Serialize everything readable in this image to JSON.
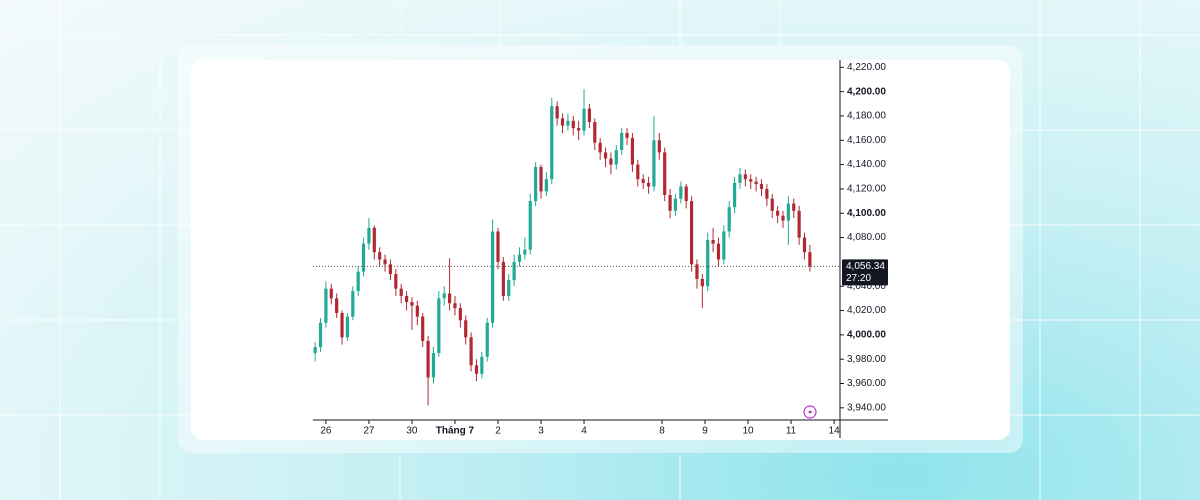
{
  "chart_data": {
    "type": "candlestick",
    "up_color": "#22ab94",
    "down_color": "#b22833",
    "x": [
      0,
      1,
      2,
      3,
      4,
      5,
      6,
      7,
      8,
      9,
      10,
      11,
      12,
      13,
      14,
      15,
      16,
      17,
      18,
      19,
      20,
      21,
      22,
      23,
      24,
      25,
      26,
      27,
      28,
      29,
      30,
      31,
      32,
      33,
      34,
      35,
      36,
      37,
      38,
      39,
      40,
      41,
      42,
      43,
      44,
      45,
      46,
      47,
      48,
      49,
      50,
      51,
      52,
      53,
      54,
      55,
      56,
      57,
      58,
      59,
      60,
      61,
      62,
      63,
      64,
      65,
      66,
      67,
      68,
      69,
      70,
      71,
      72,
      73,
      74,
      75,
      76,
      77,
      78,
      79,
      80,
      81,
      82,
      83,
      84,
      85,
      86,
      87,
      88,
      89,
      90,
      91,
      92
    ],
    "open": [
      3985,
      3990,
      4010,
      4038,
      4030,
      4018,
      3998,
      4015,
      4036,
      4052,
      4075,
      4088,
      4068,
      4062,
      4058,
      4050,
      4038,
      4032,
      4027,
      4024,
      4015,
      3995,
      3965,
      3985,
      4030,
      4034,
      4026,
      4022,
      4012,
      3998,
      3975,
      3968,
      3982,
      4010,
      4085,
      4060,
      4032,
      4045,
      4060,
      4066,
      4070,
      4110,
      4138,
      4118,
      4128,
      4188,
      4178,
      4172,
      4176,
      4170,
      4168,
      4186,
      4175,
      4158,
      4150,
      4145,
      4140,
      4152,
      4166,
      4162,
      4140,
      4128,
      4125,
      4122,
      4160,
      4150,
      4115,
      4102,
      4112,
      4122,
      4110,
      4058,
      4046,
      4040,
      4078,
      4075,
      4062,
      4085,
      4105,
      4125,
      4132,
      4128,
      4126,
      4124,
      4120,
      4112,
      4102,
      4098,
      4094,
      4108,
      4102,
      4080,
      4068
    ],
    "high": [
      3994,
      4014,
      4044,
      4042,
      4034,
      4020,
      4018,
      4040,
      4056,
      4080,
      4096,
      4090,
      4072,
      4066,
      4062,
      4054,
      4042,
      4036,
      4031,
      4028,
      4018,
      3999,
      3990,
      4036,
      4040,
      4063,
      4032,
      4026,
      4016,
      4002,
      3980,
      3986,
      4014,
      4095,
      4088,
      4064,
      4050,
      4066,
      4072,
      4080,
      4116,
      4142,
      4140,
      4134,
      4195,
      4192,
      4182,
      4182,
      4180,
      4176,
      4202,
      4190,
      4178,
      4162,
      4154,
      4150,
      4156,
      4170,
      4170,
      4166,
      4144,
      4132,
      4130,
      4180,
      4166,
      4154,
      4120,
      4116,
      4126,
      4124,
      4114,
      4062,
      4050,
      4084,
      4088,
      4080,
      4090,
      4110,
      4130,
      4137,
      4136,
      4132,
      4130,
      4128,
      4124,
      4116,
      4106,
      4102,
      4114,
      4112,
      4106,
      4084,
      4074
    ],
    "low": [
      3978,
      3986,
      4006,
      4025,
      4014,
      3992,
      3995,
      4012,
      4032,
      4048,
      4070,
      4062,
      4056,
      4052,
      4045,
      4032,
      4026,
      4020,
      4004,
      4008,
      3990,
      3942,
      3960,
      3982,
      4024,
      4020,
      4016,
      4006,
      3992,
      3970,
      3962,
      3964,
      3978,
      4006,
      4054,
      4028,
      4028,
      4040,
      4056,
      4062,
      4066,
      4106,
      4112,
      4114,
      4124,
      4172,
      4166,
      4168,
      4164,
      4160,
      4164,
      4170,
      4152,
      4144,
      4138,
      4132,
      4136,
      4148,
      4156,
      4134,
      4122,
      4120,
      4116,
      4118,
      4144,
      4110,
      4096,
      4098,
      4108,
      4104,
      4052,
      4038,
      4022,
      4036,
      4068,
      4056,
      4058,
      4080,
      4100,
      4120,
      4122,
      4120,
      4118,
      4114,
      4106,
      4096,
      4092,
      4088,
      4074,
      4096,
      4074,
      4062,
      4052
    ],
    "close": [
      3990,
      4010,
      4038,
      4030,
      4018,
      3998,
      4015,
      4036,
      4052,
      4075,
      4088,
      4068,
      4062,
      4058,
      4050,
      4038,
      4032,
      4027,
      4024,
      4015,
      3995,
      3965,
      3985,
      4030,
      4034,
      4026,
      4022,
      4012,
      3998,
      3975,
      3968,
      3982,
      4010,
      4085,
      4060,
      4032,
      4045,
      4060,
      4066,
      4070,
      4110,
      4138,
      4118,
      4128,
      4188,
      4178,
      4172,
      4176,
      4170,
      4168,
      4186,
      4175,
      4158,
      4150,
      4145,
      4140,
      4152,
      4166,
      4162,
      4140,
      4128,
      4125,
      4122,
      4160,
      4150,
      4115,
      4102,
      4112,
      4122,
      4110,
      4058,
      4046,
      4040,
      4078,
      4075,
      4062,
      4085,
      4105,
      4125,
      4132,
      4128,
      4126,
      4124,
      4120,
      4112,
      4102,
      4098,
      4094,
      4108,
      4102,
      4080,
      4068,
      4056.34
    ],
    "xlim": [
      -0.4,
      97.6
    ],
    "xticks": [
      {
        "value": 2,
        "label": "26"
      },
      {
        "value": 10,
        "label": "27"
      },
      {
        "value": 18,
        "label": "30"
      },
      {
        "value": 26,
        "label": "Tháng 7"
      },
      {
        "value": 34,
        "label": "2"
      },
      {
        "value": 42,
        "label": "3"
      },
      {
        "value": 50,
        "label": "4"
      },
      {
        "value": 64.5,
        "label": "8"
      },
      {
        "value": 72.5,
        "label": "9"
      },
      {
        "value": 80.5,
        "label": "10"
      },
      {
        "value": 88.5,
        "label": "11"
      },
      {
        "value": 96.5,
        "label": "14"
      }
    ],
    "ylim": [
      3930,
      4226
    ],
    "yticks": [
      {
        "value": 3940,
        "label": "3,940.00"
      },
      {
        "value": 3960,
        "label": "3,960.00"
      },
      {
        "value": 3980,
        "label": "3,980.00"
      },
      {
        "value": 4000,
        "label": "4,000.00"
      },
      {
        "value": 4020,
        "label": "4,020.00"
      },
      {
        "value": 4040,
        "label": "4,040.00"
      },
      {
        "value": 4080,
        "label": "4,080.00"
      },
      {
        "value": 4100,
        "label": "4,100.00"
      },
      {
        "value": 4120,
        "label": "4,120.00"
      },
      {
        "value": 4140,
        "label": "4,140.00"
      },
      {
        "value": 4160,
        "label": "4,160.00"
      },
      {
        "value": 4180,
        "label": "4,180.00"
      },
      {
        "value": 4200,
        "label": "4,200.00"
      },
      {
        "value": 4220,
        "label": "4,220.00"
      }
    ],
    "last_price": {
      "value": 4056.34,
      "label": "4,056.34"
    },
    "countdown": "27:20"
  }
}
